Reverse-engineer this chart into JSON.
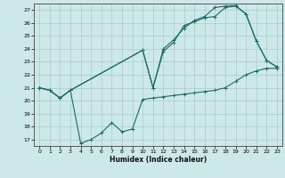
{
  "xlabel": "Humidex (Indice chaleur)",
  "bg_color": "#cce8e8",
  "grid_color": "#aacccc",
  "line_color": "#1a6b6b",
  "xlim": [
    -0.5,
    23.5
  ],
  "ylim": [
    16.5,
    27.5
  ],
  "xticks": [
    0,
    1,
    2,
    3,
    4,
    5,
    6,
    7,
    8,
    9,
    10,
    11,
    12,
    13,
    14,
    15,
    16,
    17,
    18,
    19,
    20,
    21,
    22,
    23
  ],
  "yticks": [
    17,
    18,
    19,
    20,
    21,
    22,
    23,
    24,
    25,
    26,
    27
  ],
  "curve1_x": [
    0,
    1,
    2,
    3,
    4,
    5,
    6,
    7,
    8,
    9,
    10,
    11,
    12,
    13,
    14,
    15,
    16,
    17,
    18,
    19,
    20,
    21,
    22,
    23
  ],
  "curve1_y": [
    21.0,
    20.8,
    20.2,
    20.8,
    16.7,
    17.0,
    17.5,
    18.3,
    17.6,
    17.8,
    20.1,
    20.2,
    20.3,
    20.4,
    20.5,
    20.6,
    20.7,
    20.8,
    21.0,
    21.5,
    22.0,
    22.3,
    22.5,
    22.5
  ],
  "curve2_x": [
    0,
    1,
    2,
    3,
    10,
    11,
    12,
    13,
    14,
    15,
    16,
    17,
    18,
    19,
    20,
    21,
    22,
    23
  ],
  "curve2_y": [
    21.0,
    20.8,
    20.2,
    20.8,
    23.9,
    21.0,
    23.8,
    24.5,
    25.8,
    26.1,
    26.4,
    26.5,
    27.2,
    27.3,
    26.7,
    24.6,
    23.1,
    22.6
  ],
  "curve3_x": [
    0,
    1,
    2,
    3,
    10,
    11,
    12,
    13,
    14,
    15,
    16,
    17,
    18,
    19,
    20,
    21,
    22,
    23
  ],
  "curve3_y": [
    21.0,
    20.8,
    20.2,
    20.8,
    23.9,
    21.0,
    24.0,
    24.7,
    25.6,
    26.2,
    26.5,
    27.2,
    27.3,
    27.35,
    26.7,
    24.6,
    23.1,
    22.6
  ]
}
